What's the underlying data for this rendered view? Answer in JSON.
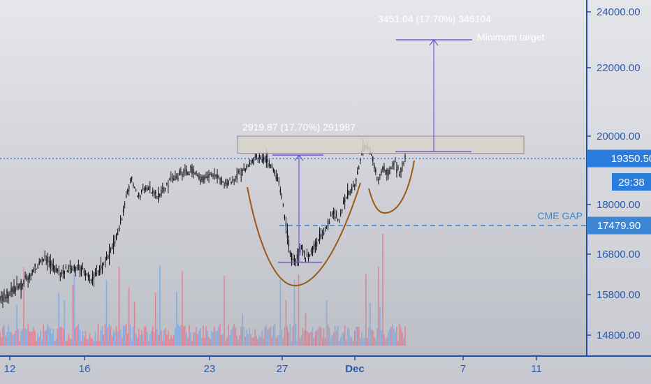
{
  "chart_data": {
    "type": "candlestick",
    "symbol_period": "hourly",
    "x_ticks": [
      "12",
      "16",
      "23",
      "27",
      "Dec",
      "7",
      "11"
    ],
    "y_ticks": [
      "24000.00",
      "22000.00",
      "20000.00",
      "18000.00",
      "16800.00",
      "15800.00",
      "14800.00"
    ],
    "ylim": [
      14400,
      25000
    ],
    "current_price": "19350.50",
    "current_price_value": 19350.5,
    "countdown": "29:38",
    "cme_gap_price": "17479.90",
    "cme_gap_value": 17479.9,
    "cme_gap_label": "CME GAP",
    "measure_label_1": "2919.87 (17.70%) 291987",
    "measure_label_2": "3451.04 (17.70%) 345104",
    "target_label": "Minimum target",
    "minimum_target_value": 23000,
    "resistance_zone": [
      19500,
      20000
    ],
    "pattern_lows": [
      16300,
      17400
    ],
    "price_path": [
      [
        0,
        15700
      ],
      [
        4,
        16050
      ],
      [
        8,
        16700
      ],
      [
        11,
        16300
      ],
      [
        14,
        16500
      ],
      [
        17,
        16150
      ],
      [
        20,
        16800
      ],
      [
        22,
        17500
      ],
      [
        24,
        18800
      ],
      [
        25,
        18250
      ],
      [
        27,
        18500
      ],
      [
        29,
        18250
      ],
      [
        31,
        18700
      ],
      [
        33,
        18900
      ],
      [
        35,
        19000
      ],
      [
        37,
        18700
      ],
      [
        39,
        18900
      ],
      [
        41,
        18600
      ],
      [
        43,
        18800
      ],
      [
        45,
        19100
      ],
      [
        47,
        19400
      ],
      [
        49,
        19300
      ],
      [
        50,
        19000
      ],
      [
        51,
        18600
      ],
      [
        52,
        17700
      ],
      [
        53,
        16800
      ],
      [
        54,
        16600
      ],
      [
        55,
        17000
      ],
      [
        56,
        16700
      ],
      [
        57,
        16900
      ],
      [
        59,
        17300
      ],
      [
        61,
        17800
      ],
      [
        62,
        17600
      ],
      [
        63,
        18200
      ],
      [
        65,
        18600
      ],
      [
        66,
        19500
      ],
      [
        67,
        19800
      ],
      [
        68,
        19400
      ],
      [
        69,
        18700
      ],
      [
        70,
        19100
      ],
      [
        71,
        18900
      ],
      [
        72,
        19200
      ],
      [
        73,
        18900
      ],
      [
        74,
        19350
      ]
    ]
  },
  "colors": {
    "background_top": "#e4e5e9",
    "background_bottom": "#bcbec6",
    "candles": "#111111",
    "axis": "#1f4fa8",
    "price_line": "#2a6ad8",
    "cme_line": "#3d86d4",
    "pattern_curve": "#9b5a14",
    "measure": "#6e58d8",
    "zone_fill": "#d6d0c8",
    "zone_stroke": "#8a8690",
    "vol_blue": "#7aa8e0",
    "vol_red": "#e07a8c"
  }
}
